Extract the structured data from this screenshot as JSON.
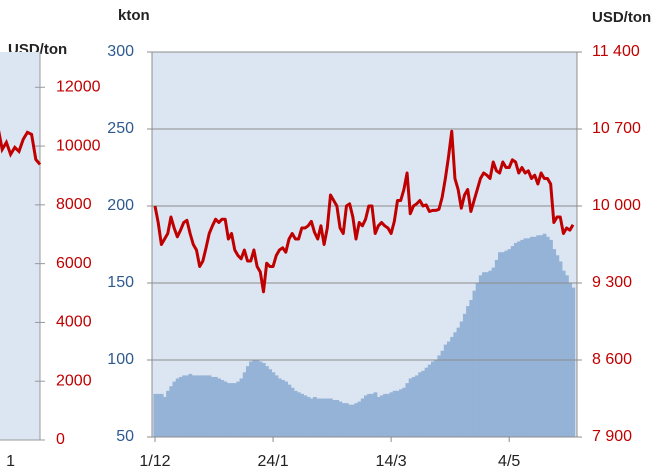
{
  "chart_data": [
    {
      "type": "line",
      "y2label": "USD/ton",
      "categories": [
        null,
        null,
        null,
        "1",
        null,
        null,
        null,
        null,
        null,
        null,
        null
      ],
      "series": [
        {
          "name": "USD/ton",
          "color": "#c00000",
          "axis": "y2",
          "values": [
            10636,
            9886,
            10125,
            9716,
            9955,
            9818,
            10227,
            10466,
            10398,
            9545,
            9375
          ]
        }
      ],
      "y2lim": [
        0,
        13200
      ],
      "y2ticks": [
        0,
        2000,
        4000,
        6000,
        8000,
        10000,
        12000
      ]
    },
    {
      "type": "bar_line",
      "ylabel": "kton",
      "y2label": "USD/ton",
      "grid": true,
      "categories": [
        "1/12",
        null,
        null,
        null,
        null,
        null,
        null,
        null,
        null,
        null,
        null,
        null,
        null,
        null,
        null,
        null,
        null,
        null,
        null,
        null,
        null,
        null,
        null,
        null,
        null,
        null,
        null,
        null,
        null,
        null,
        null,
        null,
        null,
        null,
        null,
        null,
        null,
        "24/1",
        null,
        null,
        null,
        null,
        null,
        null,
        null,
        null,
        null,
        null,
        null,
        null,
        null,
        null,
        null,
        null,
        null,
        null,
        null,
        null,
        null,
        null,
        null,
        null,
        null,
        null,
        null,
        null,
        null,
        null,
        null,
        null,
        null,
        null,
        null,
        null,
        "14/3",
        null,
        null,
        null,
        null,
        null,
        null,
        null,
        null,
        null,
        null,
        null,
        null,
        null,
        null,
        null,
        null,
        null,
        null,
        null,
        null,
        null,
        null,
        null,
        null,
        null,
        null,
        null,
        null,
        null,
        null,
        null,
        null,
        null,
        null,
        null,
        null,
        "4/5",
        null,
        null,
        null,
        null,
        null,
        null,
        null,
        null,
        null,
        null,
        null,
        null,
        null,
        null,
        null,
        null,
        null,
        null,
        null,
        null
      ],
      "series": [
        {
          "name": "kton",
          "color": "#95b3d7",
          "axis": "y",
          "values": [
            78,
            78,
            78,
            76,
            80,
            83,
            86,
            88,
            89,
            90,
            90,
            91,
            90,
            90,
            90,
            90,
            90,
            90,
            89,
            89,
            88,
            87,
            86,
            85,
            85,
            85,
            86,
            88,
            92,
            96,
            99,
            100,
            100,
            99,
            98,
            96,
            94,
            92,
            90,
            88,
            87,
            86,
            84,
            82,
            80,
            79,
            78,
            77,
            76,
            75,
            76,
            75,
            75,
            75,
            75,
            75,
            74,
            74,
            73,
            72,
            72,
            71,
            71,
            72,
            73,
            75,
            77,
            78,
            78,
            79,
            76,
            77,
            78,
            78,
            79,
            80,
            80,
            81,
            82,
            85,
            88,
            89,
            90,
            92,
            93,
            95,
            97,
            99,
            100,
            103,
            106,
            110,
            112,
            115,
            118,
            121,
            125,
            130,
            135,
            139,
            145,
            150,
            155,
            157,
            157,
            158,
            160,
            165,
            170,
            170,
            171,
            172,
            174,
            176,
            177,
            178,
            179,
            179,
            180,
            180,
            181,
            181,
            182,
            180,
            178,
            172,
            168,
            164,
            158,
            155,
            150,
            147
          ]
        },
        {
          "name": "USD/ton",
          "color": "#c00000",
          "axis": "y2",
          "values": [
            10000,
            9850,
            9650,
            9700,
            9750,
            9900,
            9800,
            9720,
            9780,
            9850,
            9870,
            9750,
            9650,
            9600,
            9450,
            9500,
            9620,
            9750,
            9820,
            9880,
            9850,
            9880,
            9880,
            9700,
            9750,
            9600,
            9550,
            9520,
            9600,
            9500,
            9500,
            9600,
            9450,
            9400,
            9220,
            9480,
            9450,
            9450,
            9550,
            9600,
            9620,
            9580,
            9700,
            9750,
            9700,
            9700,
            9800,
            9800,
            9820,
            9860,
            9760,
            9700,
            9820,
            9650,
            9800,
            10100,
            10050,
            10000,
            9800,
            9750,
            10000,
            10020,
            9900,
            9700,
            9850,
            9820,
            9880,
            10000,
            10000,
            9750,
            9820,
            9850,
            9820,
            9800,
            9750,
            9860,
            10050,
            10050,
            10150,
            10300,
            9930,
            10000,
            10020,
            10050,
            10000,
            10010,
            9950,
            9960,
            9960,
            9970,
            10080,
            10250,
            10450,
            10680,
            10250,
            10150,
            9980,
            10100,
            10150,
            9950,
            10050,
            10150,
            10250,
            10300,
            10280,
            10250,
            10400,
            10320,
            10300,
            10400,
            10350,
            10350,
            10420,
            10400,
            10300,
            10350,
            10300,
            10320,
            10250,
            10280,
            10200,
            10300,
            10250,
            10250,
            10200,
            9850,
            9900,
            9900,
            9750,
            9800,
            9780,
            9830
          ]
        }
      ],
      "ylim": [
        50,
        300
      ],
      "yticks": [
        50,
        100,
        150,
        200,
        250,
        300
      ],
      "y2lim": [
        7900,
        11400
      ],
      "y2ticks": [
        {
          "value": 7900,
          "label": "7 900"
        },
        {
          "value": 8600,
          "label": "8 600"
        },
        {
          "value": 9300,
          "label": "9 300"
        },
        {
          "value": 10000,
          "label": "10 000"
        },
        {
          "value": 10700,
          "label": "10 700"
        },
        {
          "value": 11400,
          "label": "11 400"
        }
      ]
    }
  ]
}
